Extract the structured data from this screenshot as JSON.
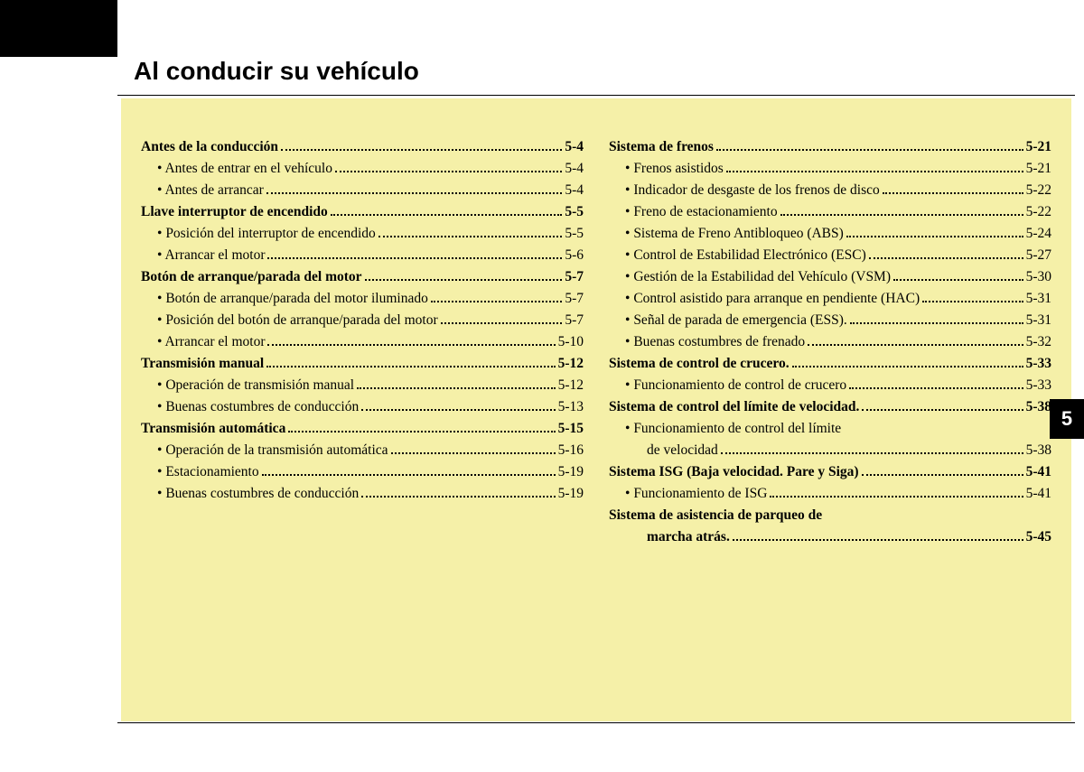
{
  "title": "Al conducir su vehículo",
  "side_tab": "5",
  "colors": {
    "page_bg": "#ffffff",
    "content_bg": "#f5f0a8",
    "text": "#000000",
    "tab_bg": "#000000",
    "tab_text": "#ffffff"
  },
  "left": [
    {
      "t": "main",
      "label": "Antes de la conducción",
      "page": "5-4"
    },
    {
      "t": "sub",
      "label": "Antes de entrar en el vehículo",
      "page": "5-4"
    },
    {
      "t": "sub",
      "label": "Antes de arrancar",
      "page": "5-4"
    },
    {
      "t": "main",
      "label": "Llave interruptor de encendido",
      "page": "5-5"
    },
    {
      "t": "sub",
      "label": "Posición del interruptor de encendido",
      "page": "5-5"
    },
    {
      "t": "sub",
      "label": "Arrancar el motor",
      "page": "5-6"
    },
    {
      "t": "main",
      "label": "Botón de arranque/parada del motor",
      "page": "5-7"
    },
    {
      "t": "sub",
      "label": "Botón de arranque/parada del motor iluminado",
      "page": "5-7"
    },
    {
      "t": "sub",
      "label": "Posición del botón de arranque/parada del motor",
      "page": "5-7"
    },
    {
      "t": "sub",
      "label": "Arrancar el motor",
      "page": "5-10"
    },
    {
      "t": "main",
      "label": "Transmisión manual",
      "page": "5-12"
    },
    {
      "t": "sub",
      "label": "Operación de transmisión manual",
      "page": "5-12"
    },
    {
      "t": "sub",
      "label": "Buenas costumbres de conducción",
      "page": "5-13"
    },
    {
      "t": "main",
      "label": "Transmisión automática",
      "page": "5-15"
    },
    {
      "t": "sub",
      "label": "Operación de la transmisión automática",
      "page": "5-16"
    },
    {
      "t": "sub",
      "label": "Estacionamiento",
      "page": "5-19"
    },
    {
      "t": "sub",
      "label": "Buenas costumbres de conducción",
      "page": "5-19"
    }
  ],
  "right": [
    {
      "t": "main",
      "label": "Sistema de frenos",
      "page": "5-21"
    },
    {
      "t": "sub",
      "label": "Frenos asistidos",
      "page": "5-21"
    },
    {
      "t": "sub",
      "label": "Indicador de desgaste de los frenos de disco",
      "page": "5-22"
    },
    {
      "t": "sub",
      "label": "Freno de estacionamiento",
      "page": "5-22"
    },
    {
      "t": "sub",
      "label": "Sistema de Freno Antibloqueo (ABS)",
      "page": "5-24"
    },
    {
      "t": "sub",
      "label": "Control de Estabilidad Electrónico (ESC)",
      "page": "5-27"
    },
    {
      "t": "sub",
      "label": "Gestión de la Estabilidad del Vehículo (VSM)",
      "page": "5-30"
    },
    {
      "t": "sub",
      "label": "Control asistido para arranque en pendiente (HAC)",
      "page": "5-31"
    },
    {
      "t": "sub",
      "label": "Señal de parada de emergencia (ESS).",
      "page": "5-31"
    },
    {
      "t": "sub",
      "label": "Buenas costumbres de frenado",
      "page": "5-32"
    },
    {
      "t": "main",
      "label": "Sistema de control de crucero.",
      "page": "5-33"
    },
    {
      "t": "sub",
      "label": "Funcionamiento de control de crucero",
      "page": "5-33"
    },
    {
      "t": "main",
      "label": "Sistema de control del límite de velocidad.",
      "page": "5-38"
    },
    {
      "t": "sub",
      "label": "Funcionamiento de control del límite",
      "page": ""
    },
    {
      "t": "cont",
      "label": "de velocidad",
      "page": "5-38"
    },
    {
      "t": "main",
      "label": "Sistema ISG (Baja velocidad. Pare y Siga)",
      "page": "5-41"
    },
    {
      "t": "sub",
      "label": "Funcionamiento de ISG",
      "page": "5-41"
    },
    {
      "t": "main",
      "label": "Sistema de asistencia de parqueo de",
      "page": ""
    },
    {
      "t": "mcont",
      "label": "marcha atrás.",
      "page": "5-45"
    }
  ]
}
